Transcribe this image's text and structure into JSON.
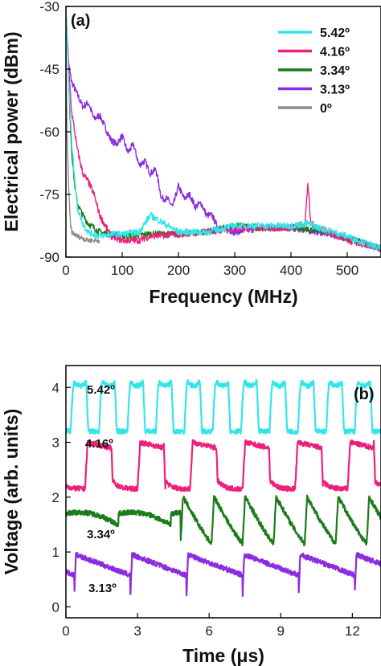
{
  "chart_data": [
    {
      "panel": "(a)",
      "type": "line",
      "xlabel": "Frequency (MHz)",
      "ylabel": "Electrical power (dBm)",
      "xlim": [
        0,
        560
      ],
      "ylim": [
        -90,
        -30
      ],
      "xticks": [
        "0",
        "100",
        "200",
        "300",
        "400",
        "500"
      ],
      "yticks": [
        "-30",
        "-45",
        "-60",
        "-75",
        "-90"
      ],
      "legend_position": "top-right",
      "series": [
        {
          "name": "5.42º",
          "color": "#33e5ea",
          "x": [
            0,
            5,
            10,
            20,
            30,
            40,
            50,
            60,
            80,
            100,
            130,
            150,
            200,
            250,
            300,
            350,
            400,
            430,
            450,
            500,
            560
          ],
          "y": [
            -31,
            -48,
            -62,
            -78,
            -82,
            -84,
            -84.5,
            -85,
            -84.5,
            -84.5,
            -84,
            -80,
            -84,
            -84,
            -82.5,
            -82.5,
            -82.5,
            -82,
            -83,
            -85,
            -88
          ]
        },
        {
          "name": "4.16º",
          "color": "#ee1f7a",
          "x": [
            0,
            5,
            10,
            20,
            30,
            40,
            50,
            60,
            80,
            100,
            130,
            150,
            200,
            250,
            300,
            350,
            400,
            425,
            430,
            435,
            450,
            500,
            560
          ],
          "y": [
            -31,
            -45,
            -55,
            -64,
            -70,
            -72,
            -75,
            -80,
            -85,
            -86,
            -86,
            -85,
            -84.5,
            -84,
            -83,
            -83,
            -83,
            -82,
            -72,
            -82,
            -83,
            -86,
            -88
          ]
        },
        {
          "name": "3.34º",
          "color": "#1a7c1a",
          "x": [
            0,
            3,
            6,
            10,
            15,
            20,
            30,
            40,
            50,
            60,
            80,
            100,
            150,
            200,
            250,
            300,
            350,
            400,
            450,
            500,
            560
          ],
          "y": [
            -31,
            -40,
            -52,
            -64,
            -72,
            -77,
            -80,
            -82,
            -83,
            -84,
            -84.5,
            -85,
            -84.5,
            -84.5,
            -84,
            -82.5,
            -83,
            -83,
            -83.5,
            -85.5,
            -88
          ]
        },
        {
          "name": "3.13º",
          "color": "#8b2be2",
          "x": [
            0,
            5,
            10,
            20,
            30,
            40,
            50,
            60,
            70,
            80,
            90,
            100,
            110,
            120,
            130,
            140,
            150,
            160,
            170,
            180,
            190,
            200,
            210,
            220,
            230,
            240,
            250,
            260,
            270,
            300,
            350,
            400,
            450,
            500,
            560
          ],
          "y": [
            -33,
            -44,
            -48,
            -51,
            -54,
            -53,
            -57,
            -56,
            -59,
            -62,
            -63,
            -61,
            -65,
            -63,
            -68,
            -67,
            -70,
            -69,
            -76,
            -76,
            -78,
            -73,
            -76,
            -75,
            -78,
            -77,
            -80,
            -80,
            -83,
            -84,
            -83,
            -83,
            -84,
            -85.5,
            -88
          ]
        },
        {
          "name": "0º",
          "color": "#8c8c8c",
          "x": [
            0,
            2,
            5,
            8,
            10,
            20,
            30,
            40,
            60
          ],
          "y": [
            -40,
            -60,
            -74,
            -82,
            -84,
            -85,
            -85.5,
            -86,
            -86
          ]
        }
      ]
    },
    {
      "panel": "(b)",
      "type": "line",
      "xlabel": "Time (μs)",
      "ylabel": "Voltage (arb. units)",
      "xlim": [
        0,
        13.2
      ],
      "ylim": [
        -0.2,
        4.4
      ],
      "xticks": [
        "0",
        "3",
        "6",
        "9",
        "12"
      ],
      "yticks": [
        "0",
        "1",
        "2",
        "3",
        "4"
      ],
      "series": [
        {
          "name": "5.42º",
          "color": "#33e5ea",
          "low": 3.2,
          "high": 4.1,
          "period_us": 1.19,
          "phase_us": 0.2,
          "shape": "rounded-square"
        },
        {
          "name": "4.16º",
          "color": "#ee1f7a",
          "low": 2.15,
          "high": 3.0,
          "period_us": 2.2,
          "phase_us": 0.8,
          "shape": "square"
        },
        {
          "name": "3.34º",
          "color": "#1a7c1a",
          "low": 1.15,
          "high": 2.0,
          "period_us": 1.3,
          "phase_us": 4.8,
          "shape": "sawtooth-arc"
        },
        {
          "name": "3.13º",
          "color": "#8b2be2",
          "low": 0.2,
          "high": 0.95,
          "period_us": 2.35,
          "phase_us": 0.35,
          "shape": "sawtooth-drop"
        }
      ]
    }
  ]
}
